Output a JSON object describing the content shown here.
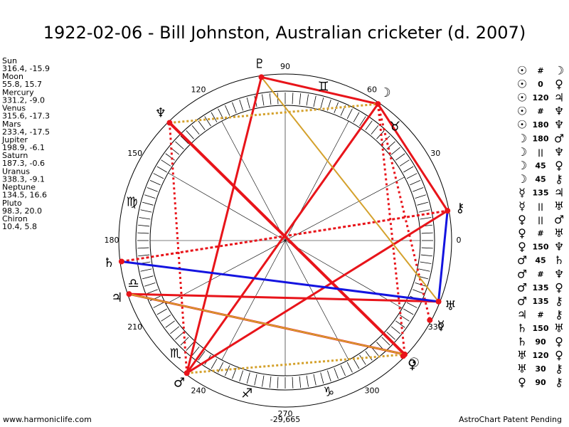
{
  "title": "1922-02-06 - Bill Johnston, Australian cricketer (d. 2007)",
  "planets": [
    {
      "name": "Sun",
      "position": "316.4, -15.9",
      "glyph": "☉"
    },
    {
      "name": "Moon",
      "position": "55.8, 15.7",
      "glyph": "☽"
    },
    {
      "name": "Mercury",
      "position": "331.2, -9.0",
      "glyph": "☿"
    },
    {
      "name": "Venus",
      "position": "315.6, -17.3",
      "glyph": "♀"
    },
    {
      "name": "Mars",
      "position": "233.4, -17.5",
      "glyph": "♂"
    },
    {
      "name": "Jupiter",
      "position": "198.9, -6.1",
      "glyph": "♃"
    },
    {
      "name": "Saturn",
      "position": "187.3, -0.6",
      "glyph": "♄"
    },
    {
      "name": "Uranus",
      "position": "338.3, -9.1",
      "glyph": "♅"
    },
    {
      "name": "Neptune",
      "position": "134.5, 16.6",
      "glyph": "♆"
    },
    {
      "name": "Pluto",
      "position": "98.3, 20.0",
      "glyph": "♇"
    },
    {
      "name": "Chiron",
      "position": "10.4, 5.8",
      "glyph": "⚷"
    }
  ],
  "zodiac": [
    null,
    "♉",
    "♊",
    null,
    null,
    "♍",
    "♎",
    "♏",
    "♐",
    "♑",
    null,
    null
  ],
  "degree_labels": [
    "0",
    "30",
    "60",
    "90",
    "120",
    "150",
    "180",
    "210",
    "240",
    "270",
    "300",
    "330"
  ],
  "center_label": "-29,665",
  "aspects": [
    [
      "☉",
      "#",
      "☽"
    ],
    [
      "☉",
      "0",
      "♀"
    ],
    [
      "☉",
      "120",
      "♃"
    ],
    [
      "☉",
      "#",
      "♆"
    ],
    [
      "☉",
      "180",
      "♆"
    ],
    [
      "☽",
      "180",
      "♂"
    ],
    [
      "☽",
      "||",
      "♆"
    ],
    [
      "☽",
      "45",
      "♀"
    ],
    [
      "☽",
      "45",
      "⚷"
    ],
    [
      "☿",
      "135",
      "♃"
    ],
    [
      "☿",
      "||",
      "♅"
    ],
    [
      "♀",
      "||",
      "♂"
    ],
    [
      "♀",
      "#",
      "♅"
    ],
    [
      "♀",
      "150",
      "♆"
    ],
    [
      "♂",
      "45",
      "♄"
    ],
    [
      "♂",
      "#",
      "♆"
    ],
    [
      "♂",
      "135",
      "♀"
    ],
    [
      "♂",
      "135",
      "⚷"
    ],
    [
      "♃",
      "#",
      "⚷"
    ],
    [
      "♄",
      "150",
      "♅"
    ],
    [
      "♄",
      "90",
      "♀"
    ],
    [
      "♅",
      "120",
      "♀"
    ],
    [
      "♅",
      "30",
      "⚷"
    ],
    [
      "♀",
      "90",
      "⚷"
    ]
  ],
  "footer": {
    "left": "www.harmoniclife.com",
    "right": "AstroChart Patent Pending"
  }
}
